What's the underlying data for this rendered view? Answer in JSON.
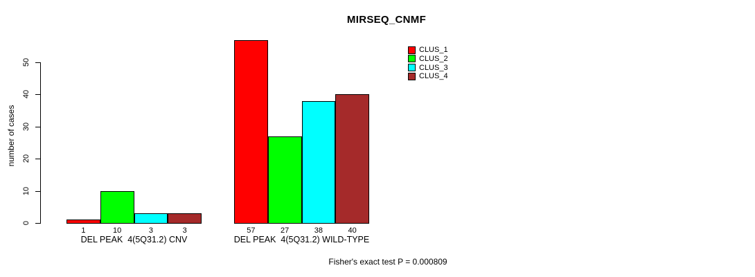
{
  "page": {
    "background": "#FFFFFF",
    "text_color": "#000000"
  },
  "chart_data": {
    "type": "bar",
    "title": "MIRSEQ_CNMF",
    "ylabel": "number of cases",
    "xlabel": "",
    "categories": [
      "DEL PEAK  4(5Q31.2) CNV",
      "DEL PEAK  4(5Q31.2) WILD-TYPE"
    ],
    "series": [
      {
        "name": "CLUS_1",
        "color": "#FF0000",
        "values": [
          1,
          57
        ]
      },
      {
        "name": "CLUS_2",
        "color": "#00FF00",
        "values": [
          10,
          27
        ]
      },
      {
        "name": "CLUS_3",
        "color": "#00FFFF",
        "values": [
          3,
          38
        ]
      },
      {
        "name": "CLUS_4",
        "color": "#A52A2A",
        "values": [
          3,
          40
        ]
      }
    ],
    "bar_value_labels": [
      [
        "1",
        "10",
        "3",
        "3"
      ],
      [
        "57",
        "27",
        "38",
        "40"
      ]
    ],
    "yticks": [
      "0",
      "10",
      "20",
      "30",
      "40",
      "50"
    ],
    "ylim": [
      0,
      57
    ],
    "grid": false,
    "bar_border_color": "#000000",
    "legend_position": "top-right",
    "legend_entries": [
      "CLUS_1",
      "CLUS_2",
      "CLUS_3",
      "CLUS_4"
    ],
    "footnote": "Fisher's exact test P = 0.000809"
  }
}
